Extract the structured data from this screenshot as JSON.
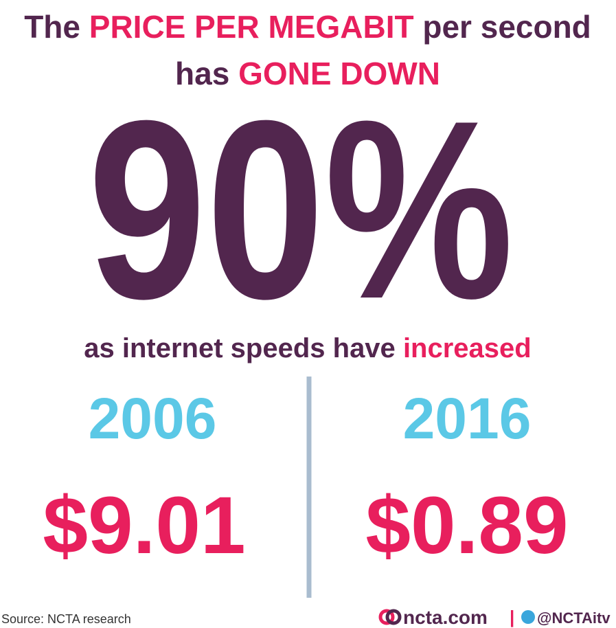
{
  "headline": {
    "line1": [
      "The",
      "PRICE PER MEGABIT",
      "per second"
    ],
    "line2": [
      "has",
      "GONE DOWN"
    ]
  },
  "big_stat": "90%",
  "subhead": [
    "as internet speeds have",
    "increased"
  ],
  "comparison": [
    {
      "year": "2006",
      "price": "$9.01"
    },
    {
      "year": "2016",
      "price": "$0.89"
    }
  ],
  "footer": {
    "source": "Source: NCTA research",
    "site": "ncta.com",
    "separator": "|",
    "handle": "@NCTAitv"
  }
}
